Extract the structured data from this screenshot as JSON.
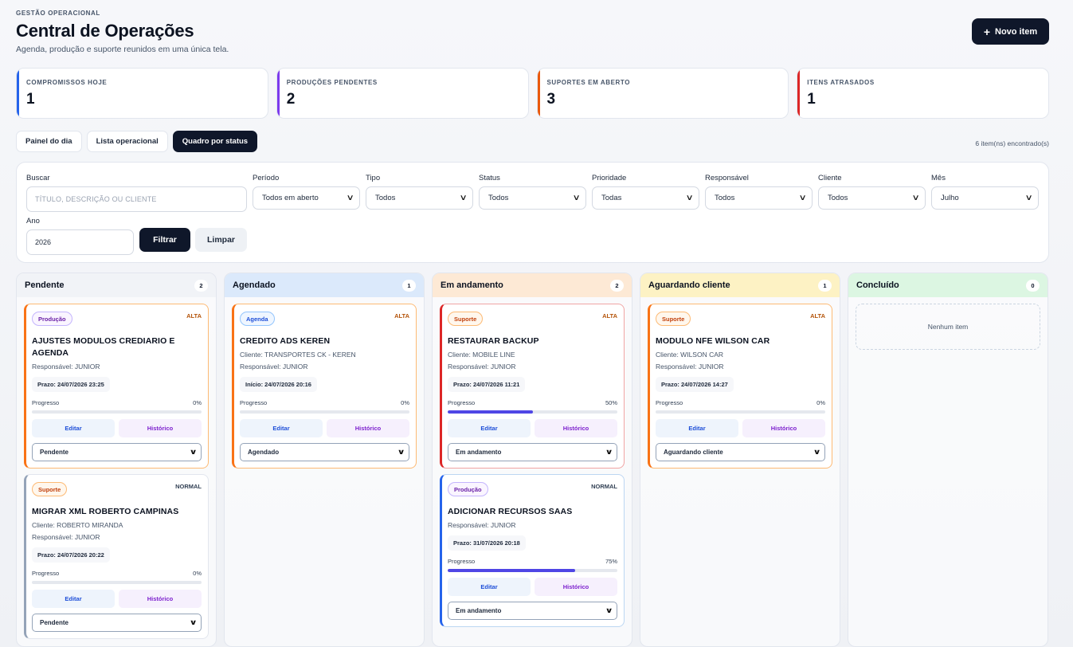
{
  "header": {
    "eyebrow": "GESTÃO OPERACIONAL",
    "title": "Central de Operações",
    "subtitle": "Agenda, produção e suporte reunidos em uma única tela.",
    "new_button": "Novo item",
    "new_button_icon": "+"
  },
  "stats": [
    {
      "label": "COMPROMISSOS HOJE",
      "value": "1",
      "color": "#2563eb"
    },
    {
      "label": "PRODUÇÕES PENDENTES",
      "value": "2",
      "color": "#7c3aed"
    },
    {
      "label": "SUPORTES EM ABERTO",
      "value": "3",
      "color": "#ea580c"
    },
    {
      "label": "ITENS ATRASADOS",
      "value": "1",
      "color": "#dc2626"
    }
  ],
  "views": {
    "tabs": [
      "Painel do dia",
      "Lista operacional",
      "Quadro por status"
    ],
    "active": "Quadro por status",
    "found": "6 item(ns) encontrado(s)"
  },
  "filters": {
    "search_label": "Buscar",
    "search_placeholder": "TÍTULO, DESCRIÇÃO OU CLIENTE",
    "periodo_label": "Período",
    "periodo_value": "Todos em aberto",
    "tipo_label": "Tipo",
    "tipo_value": "Todos",
    "status_label": "Status",
    "status_value": "Todos",
    "prioridade_label": "Prioridade",
    "prioridade_value": "Todas",
    "responsavel_label": "Responsável",
    "responsavel_value": "Todos",
    "cliente_label": "Cliente",
    "cliente_value": "Todos",
    "mes_label": "Mês",
    "mes_value": "Julho",
    "ano_label": "Ano",
    "ano_value": "2026",
    "filter_button": "Filtrar",
    "clear_button": "Limpar"
  },
  "board": {
    "empty_text": "Nenhum item",
    "progress_label": "Progresso",
    "edit_label": "Editar",
    "history_label": "Histórico",
    "columns": [
      {
        "title": "Pendente",
        "count": "2",
        "bg": "#f1f3f7",
        "cards": [
          {
            "type": "Produção",
            "type_class": "type-prod",
            "priority": "ALTA",
            "prio_class": "alta",
            "title": "AJUSTES MODULOS CREDIARIO E AGENDA",
            "client": "",
            "responsible": "Responsável: JUNIOR",
            "date": "Prazo: 24/07/2026 23:25",
            "progress": 0,
            "progress_text": "0%",
            "status": "Pendente",
            "border": "#fdba74",
            "left": "#f97316"
          },
          {
            "type": "Suporte",
            "type_class": "type-suporte",
            "priority": "NORMAL",
            "prio_class": "normal",
            "title": "MIGRAR XML ROBERTO CAMPINAS",
            "client": "Cliente: ROBERTO MIRANDA",
            "responsible": "Responsável: JUNIOR",
            "date": "Prazo: 24/07/2026 20:22",
            "progress": 0,
            "progress_text": "0%",
            "status": "Pendente",
            "border": "#e2e6ee",
            "left": "#94a3b8"
          }
        ]
      },
      {
        "title": "Agendado",
        "count": "1",
        "bg": "#dbe9fb",
        "cards": [
          {
            "type": "Agenda",
            "type_class": "type-agenda",
            "priority": "ALTA",
            "prio_class": "alta",
            "title": "CREDITO ADS KEREN",
            "client": "Cliente: TRANSPORTES CK - KEREN",
            "responsible": "Responsável: JUNIOR",
            "date": "Início: 24/07/2026 20:16",
            "progress": 0,
            "progress_text": "0%",
            "status": "Agendado",
            "border": "#fdba74",
            "left": "#f97316"
          }
        ]
      },
      {
        "title": "Em andamento",
        "count": "2",
        "bg": "#fde9d5",
        "cards": [
          {
            "type": "Suporte",
            "type_class": "type-suporte",
            "priority": "ALTA",
            "prio_class": "alta",
            "title": "RESTAURAR BACKUP",
            "client": "Cliente: MOBILE LINE",
            "responsible": "Responsável: JUNIOR",
            "date": "Prazo: 24/07/2026 11:21",
            "progress": 50,
            "progress_text": "50%",
            "status": "Em andamento",
            "border": "#f0a4a4",
            "left": "#dc2626"
          },
          {
            "type": "Produção",
            "type_class": "type-prod",
            "priority": "NORMAL",
            "prio_class": "normal",
            "title": "ADICIONAR RECURSOS SAAS",
            "client": "",
            "responsible": "Responsável: JUNIOR",
            "date": "Prazo: 31/07/2026 20:18",
            "progress": 75,
            "progress_text": "75%",
            "status": "Em andamento",
            "border": "#bcd6f2",
            "left": "#2563eb"
          }
        ]
      },
      {
        "title": "Aguardando cliente",
        "count": "1",
        "bg": "#fdf2c4",
        "cards": [
          {
            "type": "Suporte",
            "type_class": "type-suporte",
            "priority": "ALTA",
            "prio_class": "alta",
            "title": "MODULO NFE WILSON CAR",
            "client": "Cliente: WILSON CAR",
            "responsible": "Responsável: JUNIOR",
            "date": "Prazo: 24/07/2026 14:27",
            "progress": 0,
            "progress_text": "0%",
            "status": "Aguardando cliente",
            "border": "#fdba74",
            "left": "#f97316"
          }
        ]
      },
      {
        "title": "Concluído",
        "count": "0",
        "bg": "#dcf6e2",
        "cards": []
      }
    ]
  }
}
